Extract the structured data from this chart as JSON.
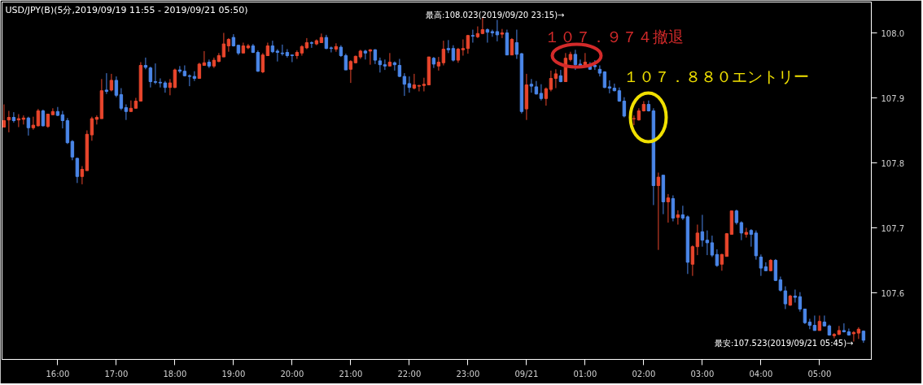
{
  "chart_data": {
    "type": "candlestick",
    "title": "USD/JPY(B)(5分,2019/09/19 11:55 - 2019/09/21 05:50)",
    "colors": [
      "#e8452c",
      "#e8452c",
      "#4a86e8",
      "#e8452c",
      "#e8452c",
      "#4a86e8",
      "#e8452c",
      "#e8452c",
      "#4a86e8",
      "#e8452c",
      "#e8452c",
      "#4a86e8",
      "#4a86e8",
      "#4a86e8",
      "#4a86e8",
      "#4a86e8",
      "#e8452c",
      "#e8452c",
      "#e8452c",
      "#e8452c",
      "#e8452c",
      "#4a86e8",
      "#e8452c",
      "#4a86e8",
      "#4a86e8",
      "#4a86e8",
      "#e8452c",
      "#e8452c",
      "#e8452c",
      "#4a86e8",
      "#4a86e8",
      "#4a86e8",
      "#4a86e8",
      "#4a86e8",
      "#e8452c",
      "#e8452c",
      "#4a86e8",
      "#4a86e8",
      "#4a86e8",
      "#4a86e8",
      "#e8452c",
      "#e8452c",
      "#4a86e8",
      "#e8452c",
      "#e8452c",
      "#e8452c",
      "#e8452c",
      "#4a86e8",
      "#4a86e8",
      "#e8452c",
      "#e8452c",
      "#4a86e8",
      "#4a86e8",
      "#e8452c",
      "#e8452c",
      "#4a86e8",
      "#4a86e8",
      "#4a86e8",
      "#4a86e8",
      "#4a86e8",
      "#e8452c",
      "#e8452c",
      "#e8452c",
      "#4a86e8",
      "#e8452c",
      "#e8452c",
      "#4a86e8",
      "#4a86e8",
      "#e8452c",
      "#4a86e8",
      "#4a86e8",
      "#e8452c",
      "#e8452c",
      "#e8452c",
      "#4a86e8",
      "#e8452c",
      "#4a86e8",
      "#4a86e8",
      "#4a86e8",
      "#e8452c",
      "#4a86e8",
      "#4a86e8",
      "#4a86e8",
      "#4a86e8",
      "#e8452c",
      "#e8452c",
      "#e8452c",
      "#e8452c",
      "#4a86e8",
      "#e8452c",
      "#e8452c",
      "#4a86e8",
      "#4a86e8",
      "#e8452c",
      "#e8452c",
      "#e8452c",
      "#4a86e8",
      "#e8452c",
      "#e8452c",
      "#4a86e8",
      "#4a86e8",
      "#4a86e8",
      "#e8452c",
      "#4a86e8",
      "#e8452c",
      "#4a86e8",
      "#4a86e8",
      "#e8452c",
      "#4a86e8",
      "#4a86e8",
      "#4a86e8",
      "#e8452c",
      "#e8452c",
      "#e8452c",
      "#4a86e8",
      "#e8452c",
      "#e8452c",
      "#4a86e8",
      "#4a86e8",
      "#e8452c",
      "#4a86e8",
      "#4a86e8",
      "#4a86e8",
      "#4a86e8",
      "#4a86e8",
      "#4a86e8",
      "#4a86e8",
      "#4a86e8",
      "#e8452c",
      "#e8452c",
      "#e8452c",
      "#4a86e8",
      "#4a86e8",
      "#e8452c",
      "#4a86e8",
      "#e8452c",
      "#4a86e8",
      "#e8452c",
      "#4a86e8",
      "#4a86e8",
      "#e8452c",
      "#e8452c",
      "#4a86e8",
      "#4a86e8",
      "#4a86e8",
      "#4a86e8",
      "#e8452c",
      "#e8452c",
      "#e8452c",
      "#4a86e8",
      "#4a86e8",
      "#e8452c",
      "#4a86e8",
      "#4a86e8",
      "#4a86e8",
      "#4a86e8",
      "#e8452c",
      "#4a86e8",
      "#4a86e8",
      "#4a86e8",
      "#e8452c",
      "#4a86e8",
      "#4a86e8",
      "#4a86e8",
      "#4a86e8",
      "#4a86e8",
      "#e8452c",
      "#4a86e8",
      "#4a86e8",
      "#e8452c",
      "#e8452c",
      "#4a86e8",
      "#4a86e8",
      "#e8452c",
      "#e8452c",
      "#4a86e8"
    ],
    "xlim": [
      "2019-09-20T15:03",
      "2019-09-21T05:53"
    ],
    "xticks": [
      {
        "value": "2019-09-20T16:00",
        "label": "16:00"
      },
      {
        "value": "2019-09-20T17:00",
        "label": "17:00"
      },
      {
        "value": "2019-09-20T18:00",
        "label": "18:00"
      },
      {
        "value": "2019-09-20T19:00",
        "label": "19:00"
      },
      {
        "value": "2019-09-20T20:00",
        "label": "20:00"
      },
      {
        "value": "2019-09-20T21:00",
        "label": "21:00"
      },
      {
        "value": "2019-09-20T22:00",
        "label": "22:00"
      },
      {
        "value": "2019-09-20T23:00",
        "label": "23:00"
      },
      {
        "value": "2019-09-21T00:00",
        "label": "09/21"
      },
      {
        "value": "2019-09-21T01:00",
        "label": "01:00"
      },
      {
        "value": "2019-09-21T02:00",
        "label": "02:00"
      },
      {
        "value": "2019-09-21T03:00",
        "label": "03:00"
      },
      {
        "value": "2019-09-21T04:00",
        "label": "04:00"
      },
      {
        "value": "2019-09-21T05:00",
        "label": "05:00"
      }
    ],
    "ylim": [
      107.4975,
      108.0475
    ],
    "yticks": [
      107.6,
      107.7,
      107.8,
      107.9,
      {
        "value": 108,
        "label": "108.0"
      }
    ],
    "annotations": [
      "最高:108.023(2019/09/20 23:15)→",
      "最安:107.523(2019/09/21 05:45)→",
      "１０７．９７４撤退",
      "１０７．８８０エントリー"
    ],
    "x": [
      "2019-09-20T15:05",
      "2019-09-20T15:10",
      "2019-09-20T15:15",
      "2019-09-20T15:20",
      "2019-09-20T15:25",
      "2019-09-20T15:30",
      "2019-09-20T15:35",
      "2019-09-20T15:40",
      "2019-09-20T15:45",
      "2019-09-20T15:50",
      "2019-09-20T15:55",
      "2019-09-20T16:00",
      "2019-09-20T16:05",
      "2019-09-20T16:10",
      "2019-09-20T16:15",
      "2019-09-20T16:20",
      "2019-09-20T16:25",
      "2019-09-20T16:30",
      "2019-09-20T16:35",
      "2019-09-20T16:40",
      "2019-09-20T16:45",
      "2019-09-20T16:50",
      "2019-09-20T16:55",
      "2019-09-20T17:00",
      "2019-09-20T17:05",
      "2019-09-20T17:10",
      "2019-09-20T17:15",
      "2019-09-20T17:20",
      "2019-09-20T17:25",
      "2019-09-20T17:30",
      "2019-09-20T17:35",
      "2019-09-20T17:40",
      "2019-09-20T17:45",
      "2019-09-20T17:50",
      "2019-09-20T17:55",
      "2019-09-20T18:00",
      "2019-09-20T18:05",
      "2019-09-20T18:10",
      "2019-09-20T18:15",
      "2019-09-20T18:20",
      "2019-09-20T18:25",
      "2019-09-20T18:30",
      "2019-09-20T18:35",
      "2019-09-20T18:40",
      "2019-09-20T18:45",
      "2019-09-20T18:50",
      "2019-09-20T18:55",
      "2019-09-20T19:00",
      "2019-09-20T19:05",
      "2019-09-20T19:10",
      "2019-09-20T19:15",
      "2019-09-20T19:20",
      "2019-09-20T19:25",
      "2019-09-20T19:30",
      "2019-09-20T19:35",
      "2019-09-20T19:40",
      "2019-09-20T19:45",
      "2019-09-20T19:50",
      "2019-09-20T19:55",
      "2019-09-20T20:00",
      "2019-09-20T20:05",
      "2019-09-20T20:10",
      "2019-09-20T20:15",
      "2019-09-20T20:20",
      "2019-09-20T20:25",
      "2019-09-20T20:30",
      "2019-09-20T20:35",
      "2019-09-20T20:40",
      "2019-09-20T20:45",
      "2019-09-20T20:50",
      "2019-09-20T20:55",
      "2019-09-20T21:00",
      "2019-09-20T21:05",
      "2019-09-20T21:10",
      "2019-09-20T21:15",
      "2019-09-20T21:20",
      "2019-09-20T21:25",
      "2019-09-20T21:30",
      "2019-09-20T21:35",
      "2019-09-20T21:40",
      "2019-09-20T21:45",
      "2019-09-20T21:50",
      "2019-09-20T21:55",
      "2019-09-20T22:00",
      "2019-09-20T22:05",
      "2019-09-20T22:10",
      "2019-09-20T22:15",
      "2019-09-20T22:20",
      "2019-09-20T22:25",
      "2019-09-20T22:30",
      "2019-09-20T22:35",
      "2019-09-20T22:40",
      "2019-09-20T22:45",
      "2019-09-20T22:50",
      "2019-09-20T22:55",
      "2019-09-20T23:00",
      "2019-09-20T23:05",
      "2019-09-20T23:10",
      "2019-09-20T23:15",
      "2019-09-20T23:20",
      "2019-09-20T23:25",
      "2019-09-20T23:30",
      "2019-09-20T23:35",
      "2019-09-20T23:40",
      "2019-09-20T23:45",
      "2019-09-20T23:50",
      "2019-09-20T23:55",
      "2019-09-21T00:00",
      "2019-09-21T00:05",
      "2019-09-21T00:10",
      "2019-09-21T00:15",
      "2019-09-21T00:20",
      "2019-09-21T00:25",
      "2019-09-21T00:30",
      "2019-09-21T00:35",
      "2019-09-21T00:40",
      "2019-09-21T00:45",
      "2019-09-21T00:50",
      "2019-09-21T00:55",
      "2019-09-21T01:00",
      "2019-09-21T01:05",
      "2019-09-21T01:10",
      "2019-09-21T01:15",
      "2019-09-21T01:20",
      "2019-09-21T01:25",
      "2019-09-21T01:30",
      "2019-09-21T01:35",
      "2019-09-21T01:40",
      "2019-09-21T01:50",
      "2019-09-21T01:55",
      "2019-09-21T02:00",
      "2019-09-21T02:05",
      "2019-09-21T02:10",
      "2019-09-21T02:15",
      "2019-09-21T02:20",
      "2019-09-21T02:25",
      "2019-09-21T02:30",
      "2019-09-21T02:35",
      "2019-09-21T02:40",
      "2019-09-21T02:45",
      "2019-09-21T02:50",
      "2019-09-21T02:55",
      "2019-09-21T03:00",
      "2019-09-21T03:05",
      "2019-09-21T03:10",
      "2019-09-21T03:15",
      "2019-09-21T03:20",
      "2019-09-21T03:25",
      "2019-09-21T03:30",
      "2019-09-21T03:35",
      "2019-09-21T03:40",
      "2019-09-21T03:45",
      "2019-09-21T03:50",
      "2019-09-21T03:55",
      "2019-09-21T04:00",
      "2019-09-21T04:05",
      "2019-09-21T04:10",
      "2019-09-21T04:15",
      "2019-09-21T04:20",
      "2019-09-21T04:25",
      "2019-09-21T04:30",
      "2019-09-21T04:35",
      "2019-09-21T04:40",
      "2019-09-21T04:45",
      "2019-09-21T04:50",
      "2019-09-21T04:55",
      "2019-09-21T05:00",
      "2019-09-21T05:05",
      "2019-09-21T05:10",
      "2019-09-21T05:15",
      "2019-09-21T05:20",
      "2019-09-21T05:25",
      "2019-09-21T05:30",
      "2019-09-21T05:35",
      "2019-09-21T05:40",
      "2019-09-21T05:45"
    ],
    "ohlc": [
      [
        107.855,
        107.89,
        107.855,
        107.865
      ],
      [
        107.866,
        107.88,
        107.847,
        107.87
      ],
      [
        107.87,
        107.878,
        107.862,
        107.865
      ],
      [
        107.866,
        107.875,
        107.855,
        107.868
      ],
      [
        107.867,
        107.873,
        107.859,
        107.869
      ],
      [
        107.869,
        107.871,
        107.842,
        107.854
      ],
      [
        107.854,
        107.871,
        107.851,
        107.858
      ],
      [
        107.857,
        107.883,
        107.856,
        107.88
      ],
      [
        107.88,
        107.882,
        107.856,
        107.857
      ],
      [
        107.856,
        107.875,
        107.854,
        107.875
      ],
      [
        107.874,
        107.884,
        107.874,
        107.879
      ],
      [
        107.879,
        107.886,
        107.872,
        107.873
      ],
      [
        107.874,
        107.88,
        107.853,
        107.865
      ],
      [
        107.865,
        107.869,
        107.829,
        107.831
      ],
      [
        107.833,
        107.835,
        107.804,
        107.809
      ],
      [
        107.807,
        107.808,
        107.769,
        107.779
      ],
      [
        107.779,
        107.795,
        107.767,
        107.79
      ],
      [
        107.788,
        107.85,
        107.788,
        107.844
      ],
      [
        107.843,
        107.871,
        107.834,
        107.868
      ],
      [
        107.867,
        107.873,
        107.859,
        107.87
      ],
      [
        107.868,
        107.929,
        107.868,
        107.911
      ],
      [
        107.912,
        107.938,
        107.906,
        107.91
      ],
      [
        107.912,
        107.937,
        107.91,
        107.927
      ],
      [
        107.927,
        107.933,
        107.901,
        107.904
      ],
      [
        107.905,
        107.915,
        107.881,
        107.884
      ],
      [
        107.885,
        107.89,
        107.866,
        107.879
      ],
      [
        107.879,
        107.896,
        107.879,
        107.884
      ],
      [
        107.884,
        107.9,
        107.884,
        107.895
      ],
      [
        107.895,
        107.955,
        107.895,
        107.95
      ],
      [
        107.95,
        107.962,
        107.944,
        107.947
      ],
      [
        107.946,
        107.948,
        107.916,
        107.925
      ],
      [
        107.925,
        107.953,
        107.921,
        107.924
      ],
      [
        107.924,
        107.93,
        107.916,
        107.923
      ],
      [
        107.923,
        107.926,
        107.908,
        107.916
      ],
      [
        107.916,
        107.929,
        107.904,
        107.923
      ],
      [
        107.916,
        107.945,
        107.915,
        107.943
      ],
      [
        107.943,
        107.949,
        107.938,
        107.941
      ],
      [
        107.941,
        107.95,
        107.933,
        107.934
      ],
      [
        107.934,
        107.936,
        107.918,
        107.933
      ],
      [
        107.933,
        107.941,
        107.926,
        107.93
      ],
      [
        107.93,
        107.954,
        107.93,
        107.952
      ],
      [
        107.95,
        107.972,
        107.95,
        107.954
      ],
      [
        107.955,
        107.959,
        107.946,
        107.949
      ],
      [
        107.949,
        107.962,
        107.946,
        107.958
      ],
      [
        107.956,
        107.969,
        107.955,
        107.965
      ],
      [
        107.963,
        108.0,
        107.963,
        107.983
      ],
      [
        107.98,
        107.992,
        107.971,
        107.99
      ],
      [
        107.993,
        107.998,
        107.979,
        107.98
      ],
      [
        107.981,
        107.981,
        107.966,
        107.969
      ],
      [
        107.969,
        107.985,
        107.969,
        107.98
      ],
      [
        107.977,
        107.983,
        107.975,
        107.98
      ],
      [
        107.98,
        107.983,
        107.969,
        107.97
      ],
      [
        107.97,
        107.973,
        107.94,
        107.941
      ],
      [
        107.94,
        107.969,
        107.938,
        107.966
      ],
      [
        107.965,
        107.985,
        107.965,
        107.98
      ],
      [
        107.98,
        107.988,
        107.969,
        107.971
      ],
      [
        107.972,
        107.975,
        107.956,
        107.97
      ],
      [
        107.969,
        107.982,
        107.965,
        107.968
      ],
      [
        107.97,
        107.975,
        107.962,
        107.965
      ],
      [
        107.966,
        107.966,
        107.955,
        107.965
      ],
      [
        107.965,
        107.973,
        107.96,
        107.97
      ],
      [
        107.969,
        107.981,
        107.965,
        107.979
      ],
      [
        107.977,
        107.992,
        107.975,
        107.985
      ],
      [
        107.985,
        107.987,
        107.977,
        107.984
      ],
      [
        107.983,
        107.99,
        107.981,
        107.988
      ],
      [
        107.985,
        107.999,
        107.985,
        107.993
      ],
      [
        107.993,
        107.997,
        107.975,
        107.976
      ],
      [
        107.977,
        107.979,
        107.97,
        107.976
      ],
      [
        107.975,
        107.984,
        107.971,
        107.979
      ],
      [
        107.978,
        107.981,
        107.963,
        107.965
      ],
      [
        107.965,
        107.968,
        107.943,
        107.943
      ],
      [
        107.944,
        107.958,
        107.923,
        107.956
      ],
      [
        107.954,
        107.965,
        107.953,
        107.964
      ],
      [
        107.963,
        107.974,
        107.96,
        107.972
      ],
      [
        107.972,
        107.974,
        107.959,
        107.969
      ],
      [
        107.972,
        107.975,
        107.951,
        107.974
      ],
      [
        107.974,
        107.975,
        107.952,
        107.958
      ],
      [
        107.957,
        107.962,
        107.939,
        107.951
      ],
      [
        107.951,
        107.959,
        107.943,
        107.949
      ],
      [
        107.949,
        107.969,
        107.949,
        107.955
      ],
      [
        107.954,
        107.956,
        107.942,
        107.951
      ],
      [
        107.95,
        107.96,
        107.932,
        107.933
      ],
      [
        107.933,
        107.938,
        107.903,
        107.921
      ],
      [
        107.922,
        107.933,
        107.908,
        107.916
      ],
      [
        107.915,
        107.937,
        107.913,
        107.92
      ],
      [
        107.918,
        107.92,
        107.91,
        107.919
      ],
      [
        107.919,
        107.931,
        107.91,
        107.921
      ],
      [
        107.92,
        107.963,
        107.92,
        107.963
      ],
      [
        107.961,
        107.963,
        107.946,
        107.952
      ],
      [
        107.949,
        107.963,
        107.942,
        107.955
      ],
      [
        107.954,
        107.988,
        107.95,
        107.975
      ],
      [
        107.976,
        107.989,
        107.969,
        107.974
      ],
      [
        107.976,
        107.981,
        107.956,
        107.958
      ],
      [
        107.958,
        107.977,
        107.954,
        107.975
      ],
      [
        107.974,
        107.99,
        107.965,
        107.976
      ],
      [
        107.976,
        107.997,
        107.968,
        107.996
      ],
      [
        107.996,
        108.005,
        107.985,
        107.995
      ],
      [
        107.994,
        108.01,
        107.992,
        107.999
      ],
      [
        107.999,
        108.023,
        107.998,
        108.005
      ],
      [
        108.005,
        108.007,
        107.985,
        108.001
      ],
      [
        108.002,
        108.005,
        107.994,
        108.0
      ],
      [
        108.002,
        108.02,
        107.987,
        107.997
      ],
      [
        107.998,
        108.006,
        107.992,
        108.0
      ],
      [
        108.0,
        108.005,
        107.966,
        107.966
      ],
      [
        107.966,
        107.992,
        107.966,
        107.99
      ],
      [
        107.985,
        108.005,
        107.96,
        107.967
      ],
      [
        107.968,
        107.969,
        107.876,
        107.879
      ],
      [
        107.883,
        107.937,
        107.866,
        107.92
      ],
      [
        107.921,
        107.929,
        107.908,
        107.918
      ],
      [
        107.917,
        107.926,
        107.905,
        107.906
      ],
      [
        107.907,
        107.921,
        107.896,
        107.899
      ],
      [
        107.899,
        107.916,
        107.888,
        107.914
      ],
      [
        107.913,
        107.942,
        107.91,
        107.93
      ],
      [
        107.93,
        107.944,
        107.915,
        107.937
      ],
      [
        107.934,
        107.943,
        107.924,
        107.925
      ],
      [
        107.925,
        107.969,
        107.925,
        107.961
      ],
      [
        107.959,
        107.971,
        107.956,
        107.967
      ],
      [
        107.967,
        107.974,
        107.943,
        107.951
      ],
      [
        107.952,
        107.959,
        107.949,
        107.95
      ],
      [
        107.95,
        107.969,
        107.948,
        107.955
      ],
      [
        107.951,
        107.955,
        107.943,
        107.944
      ],
      [
        107.95,
        107.958,
        107.943,
        107.948
      ],
      [
        107.944,
        107.95,
        107.933,
        107.938
      ],
      [
        107.94,
        107.941,
        107.915,
        107.916
      ],
      [
        107.917,
        107.927,
        107.907,
        107.915
      ],
      [
        107.915,
        107.922,
        107.91,
        107.911
      ],
      [
        107.911,
        107.916,
        107.894,
        107.895
      ],
      [
        107.895,
        107.901,
        107.87,
        107.872
      ],
      [
        107.868,
        107.873,
        107.858,
        107.868
      ],
      [
        107.866,
        107.884,
        107.865,
        107.88
      ],
      [
        107.88,
        107.895,
        107.879,
        107.89
      ],
      [
        107.89,
        107.896,
        107.879,
        107.88
      ],
      [
        107.88,
        107.884,
        107.735,
        107.765
      ],
      [
        107.765,
        107.785,
        107.666,
        107.778
      ],
      [
        107.781,
        107.781,
        107.721,
        107.74
      ],
      [
        107.74,
        107.752,
        107.708,
        107.746
      ],
      [
        107.745,
        107.75,
        107.71,
        107.715
      ],
      [
        107.716,
        107.727,
        107.705,
        107.72
      ],
      [
        107.72,
        107.734,
        107.712,
        107.715
      ],
      [
        107.717,
        107.719,
        107.629,
        107.647
      ],
      [
        107.644,
        107.673,
        107.626,
        107.671
      ],
      [
        107.671,
        107.705,
        107.658,
        107.692
      ],
      [
        107.694,
        107.72,
        107.671,
        107.681
      ],
      [
        107.681,
        107.696,
        107.658,
        107.677
      ],
      [
        107.677,
        107.688,
        107.655,
        107.658
      ],
      [
        107.659,
        107.667,
        107.64,
        107.642
      ],
      [
        107.644,
        107.66,
        107.634,
        107.659
      ],
      [
        107.656,
        107.692,
        107.656,
        107.691
      ],
      [
        107.69,
        107.726,
        107.69,
        107.726
      ],
      [
        107.726,
        107.728,
        107.705,
        107.708
      ],
      [
        107.708,
        107.71,
        107.681,
        107.692
      ],
      [
        107.69,
        107.7,
        107.685,
        107.693
      ],
      [
        107.696,
        107.698,
        107.671,
        107.69
      ],
      [
        107.692,
        107.696,
        107.651,
        107.657
      ],
      [
        107.655,
        107.659,
        107.626,
        107.638
      ],
      [
        107.64,
        107.647,
        107.634,
        107.634
      ],
      [
        107.634,
        107.652,
        107.633,
        107.65
      ],
      [
        107.65,
        107.652,
        107.618,
        107.619
      ],
      [
        107.62,
        107.625,
        107.602,
        107.604
      ],
      [
        107.603,
        107.61,
        107.575,
        107.583
      ],
      [
        107.581,
        107.597,
        107.58,
        107.595
      ],
      [
        107.595,
        107.605,
        107.585,
        107.593
      ],
      [
        107.594,
        107.601,
        107.571,
        107.575
      ],
      [
        107.575,
        107.575,
        107.552,
        107.554
      ],
      [
        107.555,
        107.56,
        107.544,
        107.55
      ],
      [
        107.55,
        107.565,
        107.542,
        107.542
      ],
      [
        107.542,
        107.565,
        107.542,
        107.556
      ],
      [
        107.555,
        107.565,
        107.548,
        107.549
      ],
      [
        107.549,
        107.551,
        107.534,
        107.535
      ],
      [
        107.534,
        107.538,
        107.53,
        107.536
      ],
      [
        107.536,
        107.549,
        107.535,
        107.542
      ],
      [
        107.542,
        107.553,
        107.539,
        107.54
      ],
      [
        107.54,
        107.545,
        107.534,
        107.535
      ],
      [
        107.537,
        107.541,
        107.525,
        107.539
      ],
      [
        107.538,
        107.547,
        107.529,
        107.544
      ],
      [
        107.541,
        107.542,
        107.523,
        107.527
      ]
    ]
  }
}
